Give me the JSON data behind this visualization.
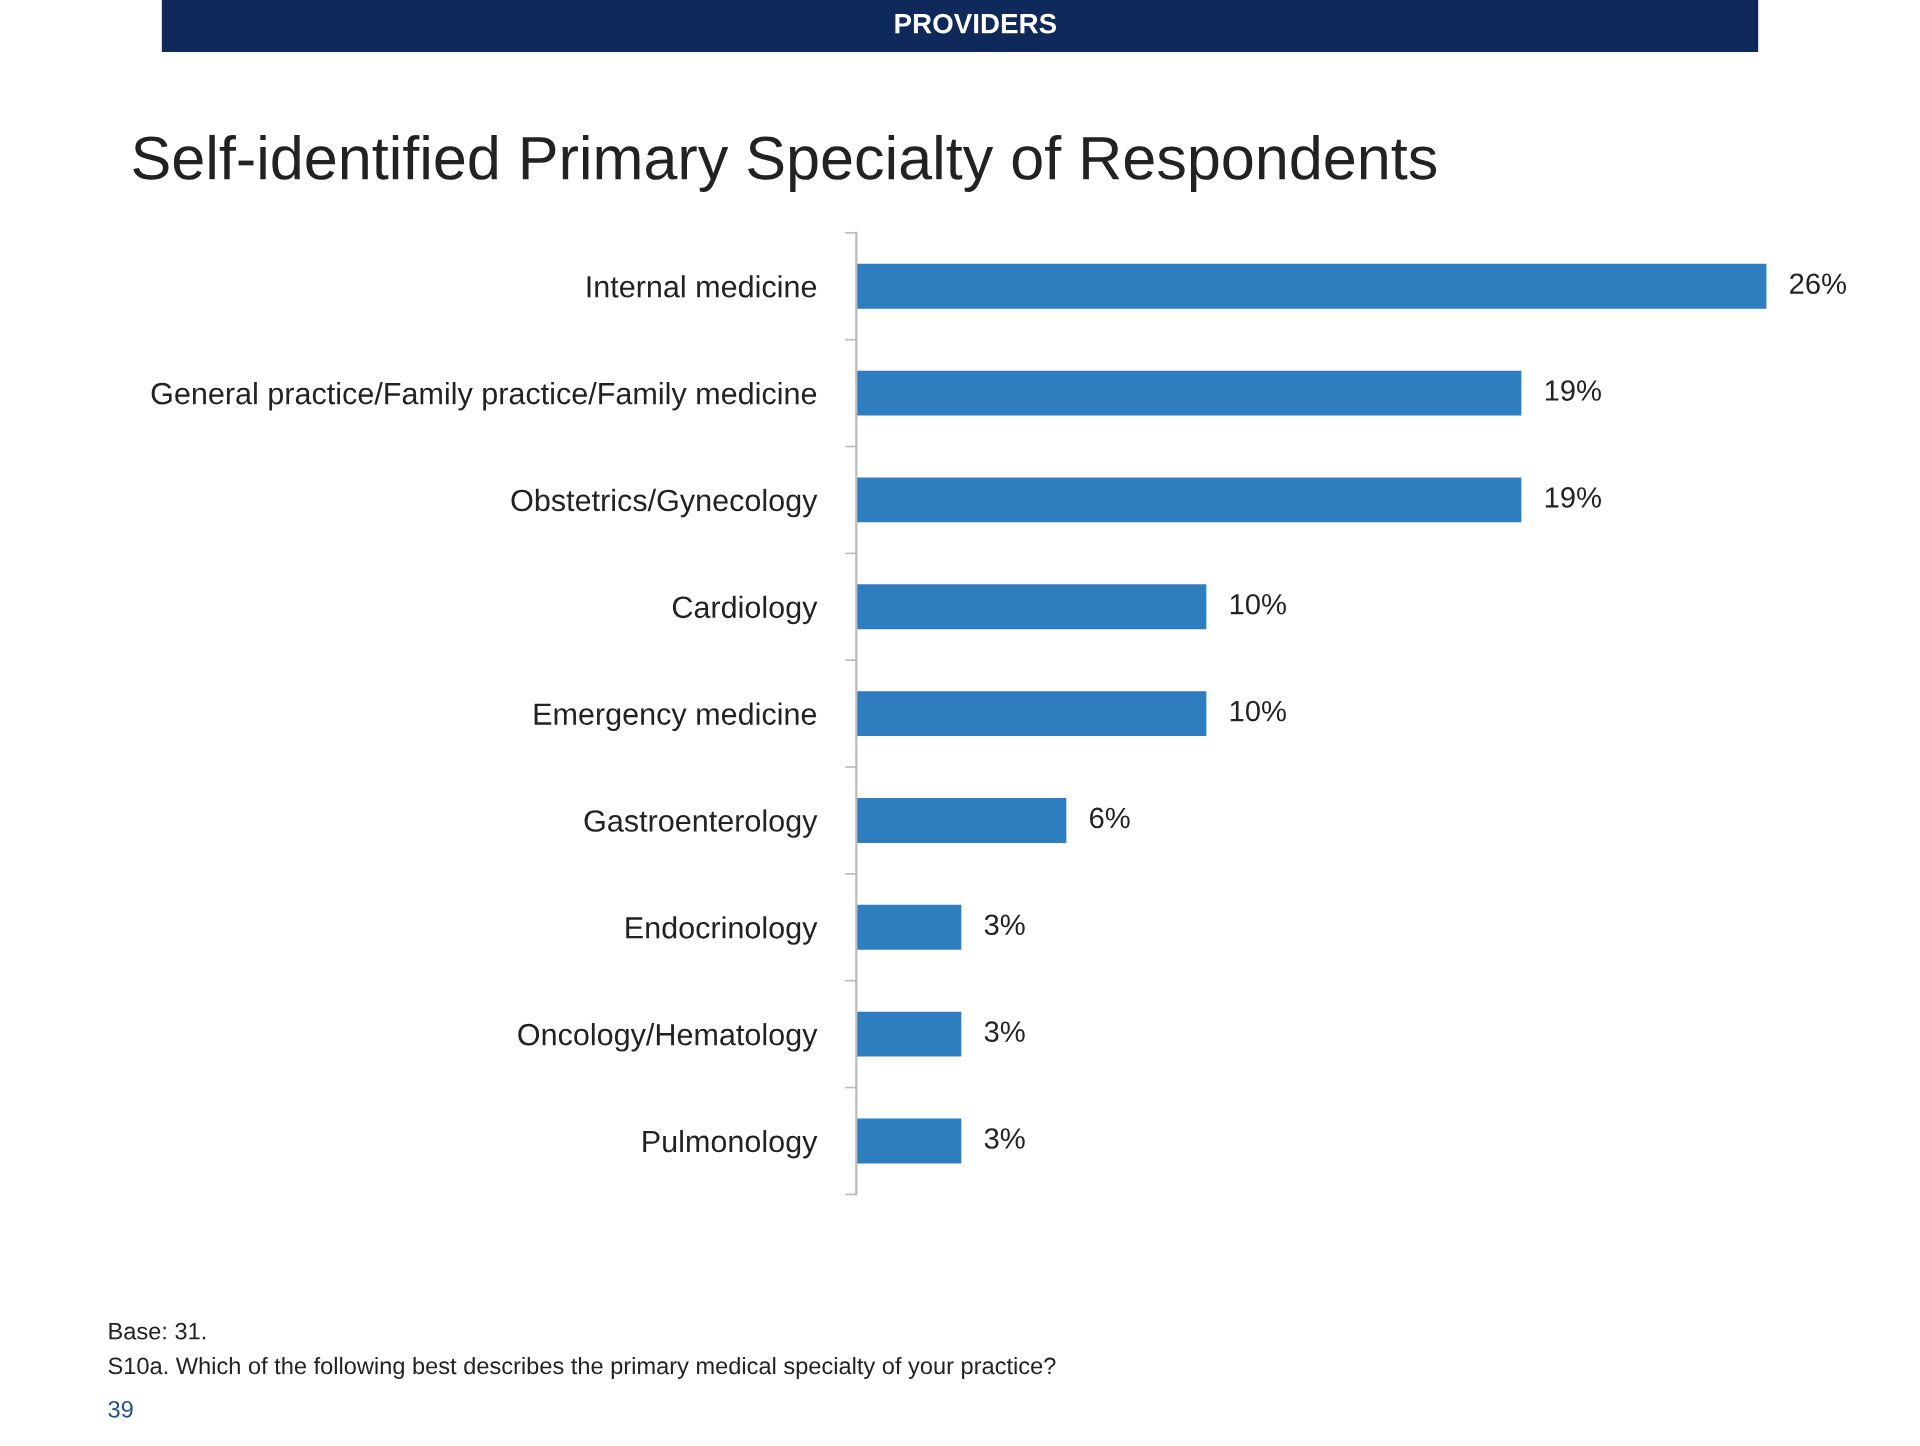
{
  "chart_data": {
    "type": "bar",
    "orientation": "horizontal",
    "title": "Self-identified Primary Specialty of Respondents",
    "subtitle": "PROVIDERS",
    "categories": [
      "Internal medicine",
      "General practice/Family practice/Family medicine",
      "Obstetrics/Gynecology",
      "Cardiology",
      "Emergency medicine",
      "Gastroenterology",
      "Endocrinology",
      "Oncology/Hematology",
      "Pulmonology"
    ],
    "values": [
      26,
      19,
      19,
      10,
      10,
      6,
      3,
      3,
      3
    ],
    "value_labels": [
      "26%",
      "19%",
      "19%",
      "10%",
      "10%",
      "6%",
      "3%",
      "3%",
      "3%"
    ],
    "color": "#2e7ebf",
    "annotations": [
      "Base: 31.",
      "S10a. Which of the following best describes the primary medical specialty of your practice?",
      "39"
    ],
    "grid": false,
    "legend": false
  }
}
